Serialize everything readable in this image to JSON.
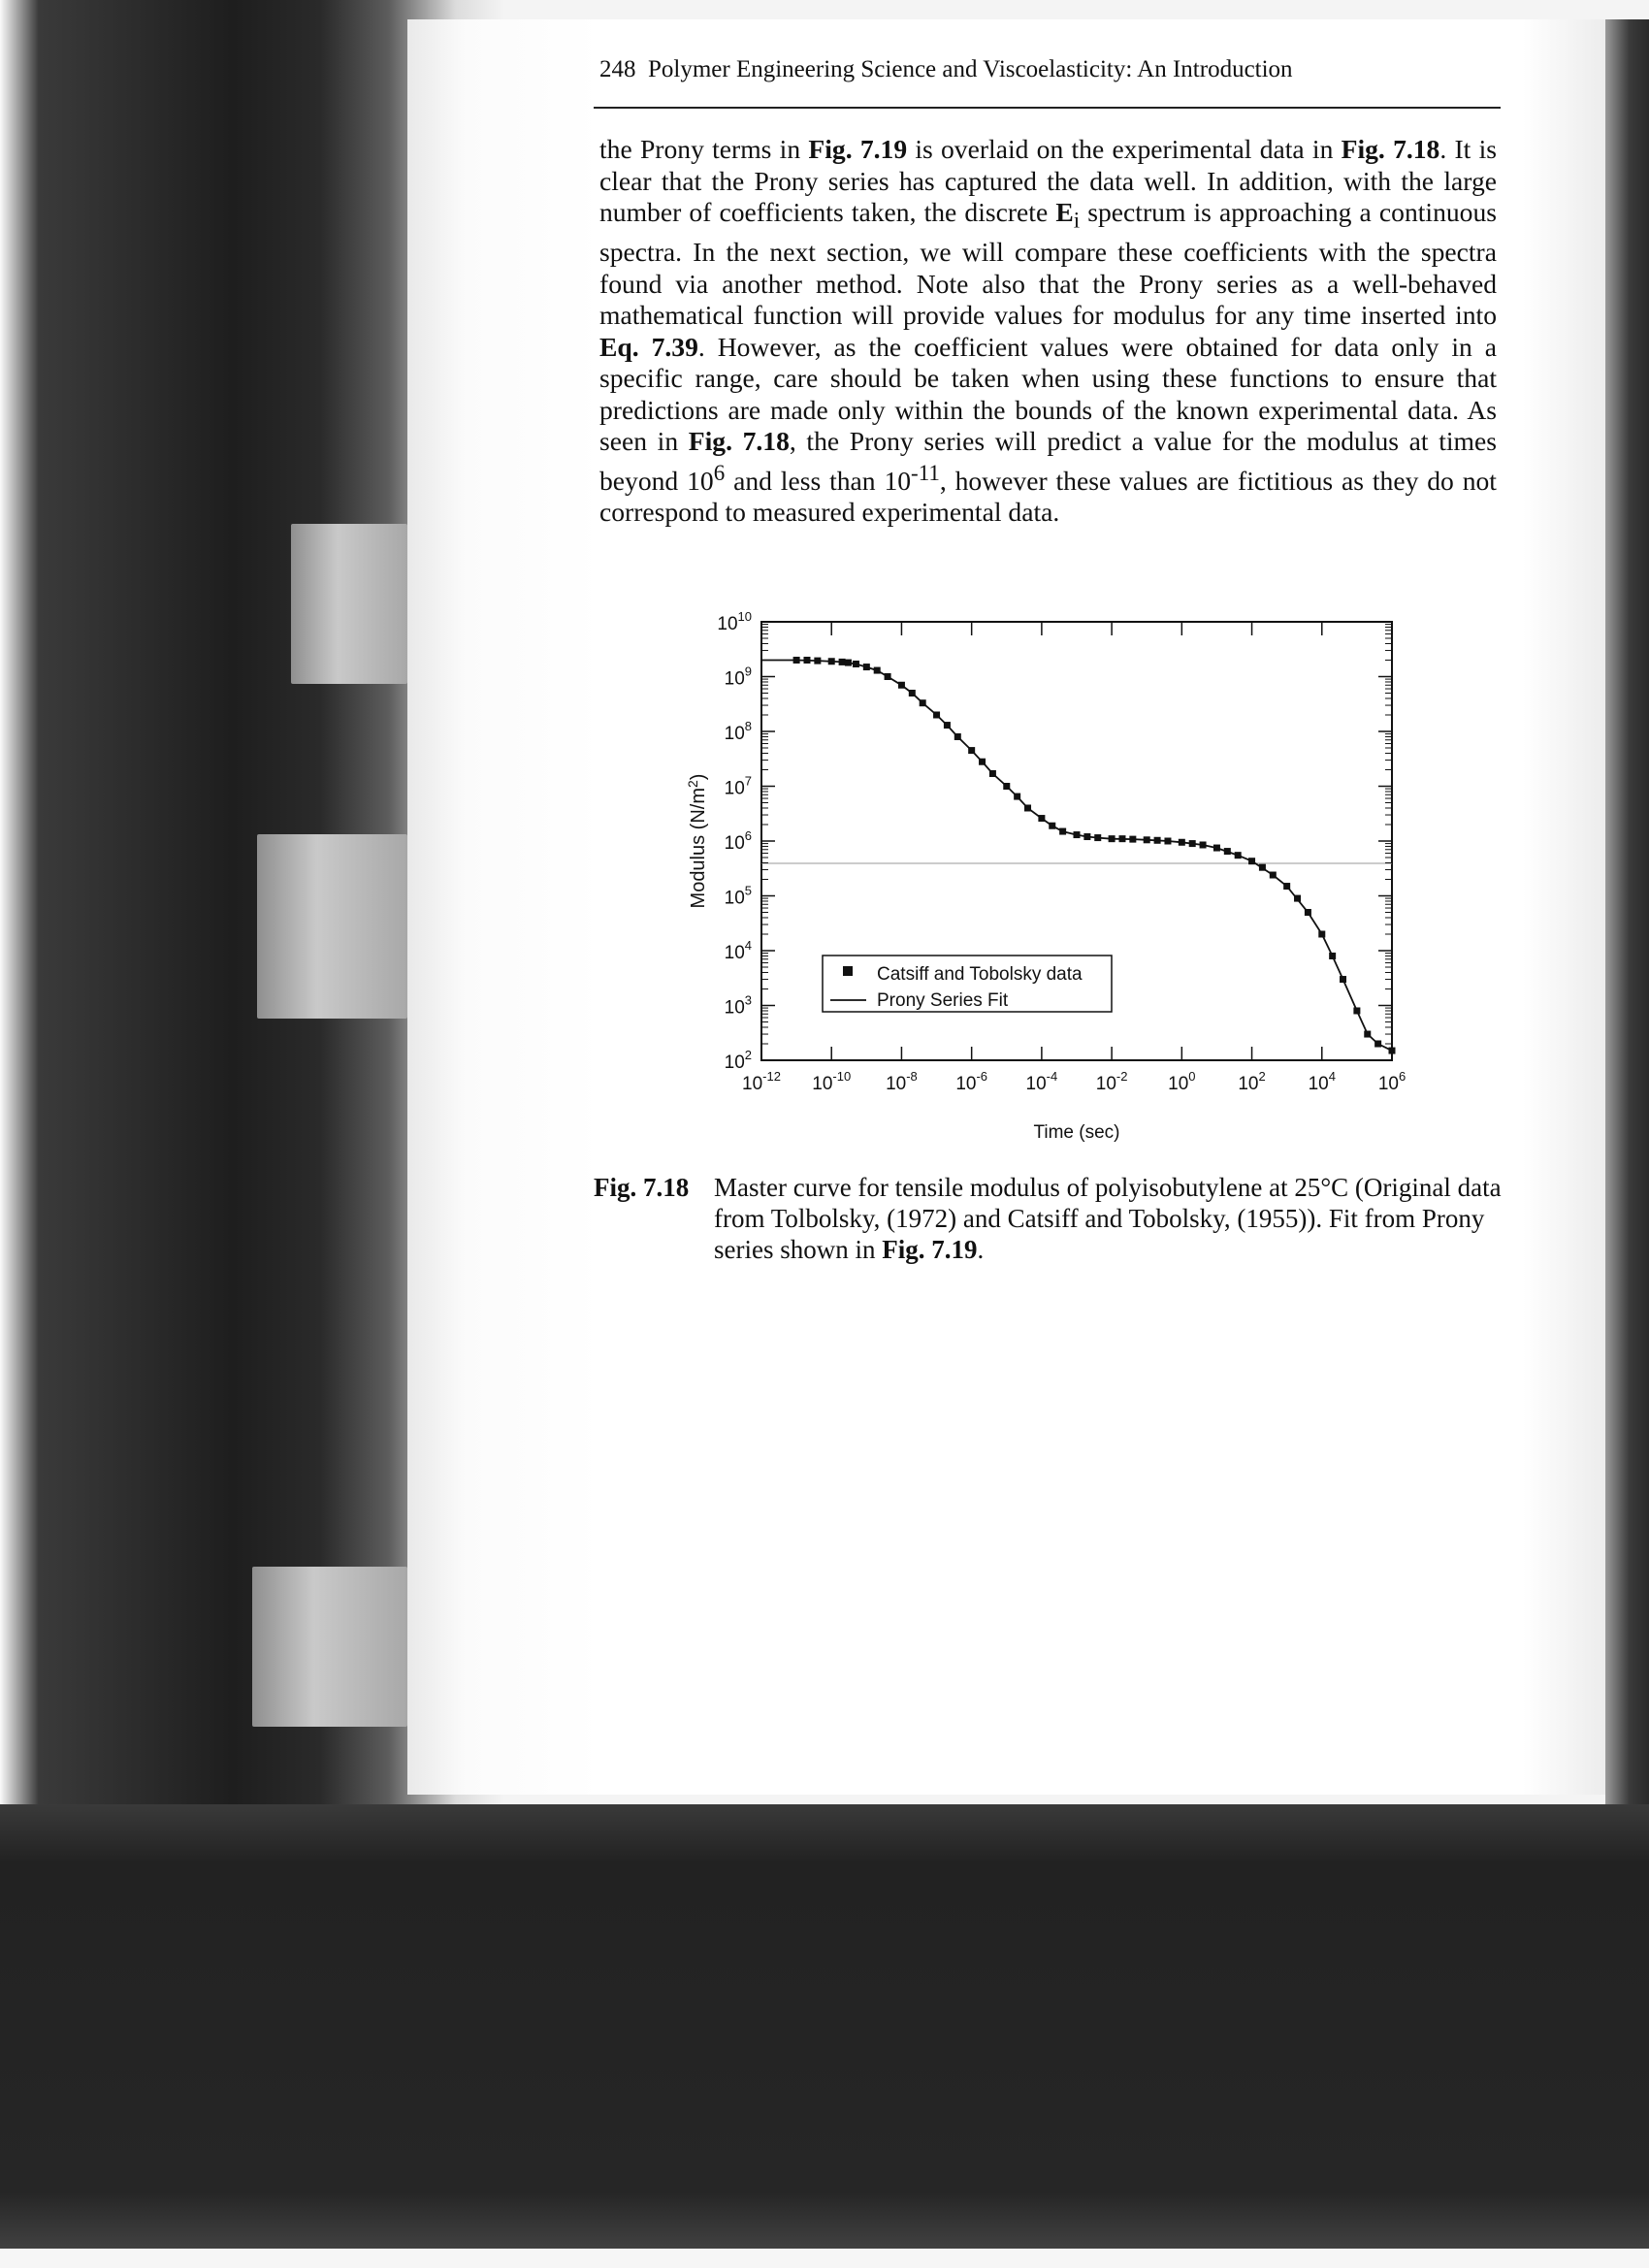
{
  "page": {
    "page_number": "248",
    "running_title": "Polymer Engineering Science and Viscoelasticity: An Introduction"
  },
  "paragraph": {
    "t1": "the Prony terms in ",
    "r1": "Fig. 7.19",
    "t2": " is overlaid on the experimental data in ",
    "r2": "Fig. 7.18",
    "t3": ". It is clear that the Prony series has captured the data well. In addition, with the large number of coefficients taken, the discrete ",
    "sym_E": "E",
    "sym_sub": "i",
    "t4": " spectrum is approaching a continuous spectra. In the next section, we will compare these coefficients with the spectra found via another method. Note also that the Prony series as a well-behaved mathematical function will provide values for modulus for any time inserted into ",
    "r3": "Eq. 7.39",
    "t5": ". However, as the coefficient values were obtained for data only in a specific range, care should be taken when using these functions to ensure that predictions are made only within the bounds of the known experimental data. As seen in ",
    "r4": "Fig. 7.18",
    "t6": ", the Prony series will predict a value for the modulus at times beyond 10",
    "sup1": "6",
    "t7": " and less than 10",
    "sup2": "-11",
    "t8": ", however these values are fictitious as they do not correspond to measured experimental data."
  },
  "figure": {
    "y_tick_labels": [
      {
        "base": "10",
        "exp": "10"
      },
      {
        "base": "10",
        "exp": "9"
      },
      {
        "base": "10",
        "exp": "8"
      },
      {
        "base": "10",
        "exp": "7"
      },
      {
        "base": "10",
        "exp": "6"
      },
      {
        "base": "10",
        "exp": "5"
      },
      {
        "base": "10",
        "exp": "4"
      },
      {
        "base": "10",
        "exp": "3"
      },
      {
        "base": "10",
        "exp": "2"
      }
    ],
    "x_tick_labels": [
      {
        "base": "10",
        "exp": "-12"
      },
      {
        "base": "10",
        "exp": "-10"
      },
      {
        "base": "10",
        "exp": "-8"
      },
      {
        "base": "10",
        "exp": "-6"
      },
      {
        "base": "10",
        "exp": "-4"
      },
      {
        "base": "10",
        "exp": "-2"
      },
      {
        "base": "10",
        "exp": "0"
      },
      {
        "base": "10",
        "exp": "2"
      },
      {
        "base": "10",
        "exp": "4"
      },
      {
        "base": "10",
        "exp": "6"
      }
    ],
    "xlabel": "Time (sec)",
    "ylabel_main": "Modulus (N/m",
    "ylabel_sup": "2",
    "ylabel_close": ")",
    "legend": {
      "data_label": "Catsiff and Tobolsky data",
      "fit_label": "Prony Series Fit"
    }
  },
  "chart_data": {
    "type": "scatter",
    "scale": {
      "x": "log",
      "y": "log"
    },
    "xlabel": "Time (sec)",
    "ylabel": "Modulus (N/m2)",
    "xlim": [
      1e-12,
      1000000.0
    ],
    "ylim": [
      100,
      10000000000
    ],
    "legend_position": "bottom-center",
    "grid": false,
    "series": [
      {
        "name": "Catsiff and Tobolsky data",
        "mark": "square",
        "x": [
          1e-11,
          2e-11,
          4e-11,
          1e-10,
          2e-10,
          3e-10,
          5e-10,
          1e-09,
          2e-09,
          4e-09,
          1e-08,
          2e-08,
          4e-08,
          1e-07,
          2e-07,
          4e-07,
          1e-06,
          2e-06,
          4e-06,
          1e-05,
          2e-05,
          4e-05,
          0.0001,
          0.0002,
          0.0004,
          0.001,
          0.002,
          0.004,
          0.01,
          0.02,
          0.04,
          0.1,
          0.2,
          0.4,
          1,
          2,
          4,
          10,
          20,
          40,
          100,
          200,
          400,
          1000,
          2000,
          4000,
          10000,
          20000,
          40000,
          100000,
          200000,
          400000,
          1000000
        ],
        "y": [
          2000000000,
          2000000000,
          1950000000,
          1900000000,
          1850000000,
          1800000000,
          1700000000,
          1500000000,
          1300000000,
          1000000000,
          700000000,
          500000000,
          330000000,
          200000000,
          130000000,
          80000000,
          45000000,
          28000000,
          17000000,
          10000000,
          6500000,
          4000000,
          2600000,
          1900000,
          1500000,
          1300000,
          1200000,
          1150000,
          1100000,
          1100000,
          1080000,
          1050000,
          1030000,
          1000000,
          950000,
          900000,
          850000,
          750000,
          650000,
          550000,
          430000,
          330000,
          240000,
          150000,
          90000,
          50000,
          20000,
          8000,
          3000,
          800,
          300,
          200,
          150
        ]
      },
      {
        "name": "Prony Series Fit",
        "mark": "line",
        "x": [
          1e-12,
          1e-11,
          4e-11,
          2e-10,
          5e-10,
          1e-09,
          2e-09,
          4e-09,
          1e-08,
          2e-08,
          4e-08,
          1e-07,
          2e-07,
          4e-07,
          1e-06,
          2e-06,
          4e-06,
          1e-05,
          2e-05,
          4e-05,
          0.0001,
          0.0002,
          0.0004,
          0.001,
          0.002,
          0.004,
          0.01,
          0.04,
          0.1,
          0.4,
          1,
          4,
          10,
          40,
          100,
          400,
          1000,
          4000,
          10000,
          20000,
          40000,
          100000,
          200000,
          400000,
          1000000
        ],
        "y": [
          2000000000,
          2000000000,
          1950000000,
          1850000000,
          1700000000,
          1500000000,
          1300000000,
          1000000000,
          700000000,
          500000000,
          330000000,
          200000000,
          130000000,
          80000000,
          45000000,
          28000000,
          17000000,
          10000000,
          6500000,
          4000000,
          2600000,
          1900000,
          1500000,
          1300000,
          1200000,
          1150000,
          1100000,
          1080000,
          1050000,
          1000000,
          950000,
          850000,
          750000,
          550000,
          430000,
          240000,
          150000,
          50000,
          20000,
          8000,
          3000,
          800,
          300,
          200,
          150
        ]
      }
    ]
  },
  "caption": {
    "label": "Fig. 7.18",
    "t1": "Master curve for tensile modulus of polyisobutylene at 25°C (Original data from Tolbolsky, (1972) and Catsiff and Tobolsky, (1955)). Fit from Prony series shown in ",
    "ref": "Fig. 7.19",
    "t2": "."
  }
}
